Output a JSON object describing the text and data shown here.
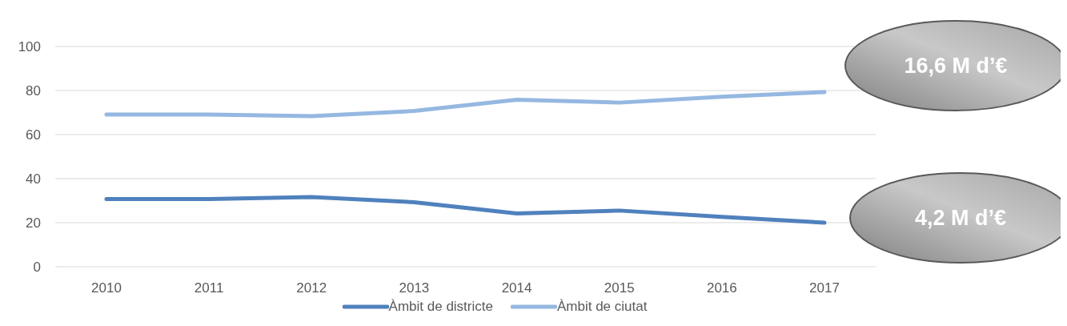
{
  "chart_data": {
    "type": "line",
    "categories": [
      "2010",
      "2011",
      "2012",
      "2013",
      "2014",
      "2015",
      "2016",
      "2017"
    ],
    "series": [
      {
        "name": "Àmbit de districte",
        "color": "#4f81bd",
        "values": [
          30.7,
          30.7,
          31.6,
          29.3,
          24.2,
          25.5,
          22.6,
          20
        ]
      },
      {
        "name": "Àmbit de ciutat",
        "color": "#95b8e1",
        "values": [
          69.1,
          69.1,
          68.4,
          70.7,
          75.8,
          74.5,
          77.2,
          79.3
        ]
      }
    ],
    "ylim": [
      0,
      100
    ],
    "yticks": [
      0,
      20,
      40,
      60,
      80,
      100
    ],
    "grid": "y",
    "legend": "bottom",
    "marker": "none",
    "line_style": "solid",
    "annotations": [
      "16,6 M d’€",
      "4,2 M d’€"
    ]
  }
}
